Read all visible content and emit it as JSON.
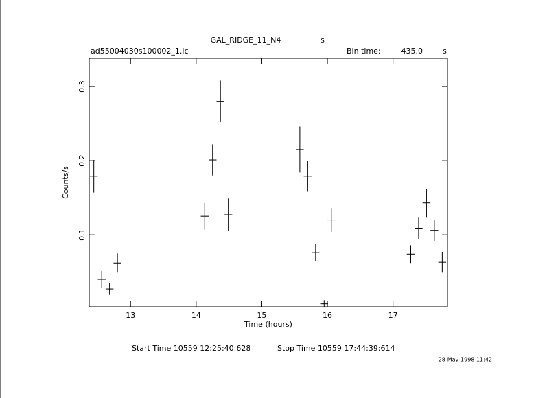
{
  "chart_data": {
    "type": "errorbar",
    "title": "GAL_RIDGE_11_N4",
    "title_unit": "s",
    "file_label": "ad55004030s100002_1.lc",
    "bin_time_label": "Bin time:",
    "bin_time": "435.0",
    "bin_time_unit": "s",
    "xlabel": "Time (hours)",
    "ylabel": "Counts/s",
    "start_time": "Start Time 10559  12:25:40:628",
    "stop_time": "Stop Time 10559  17:44:39:614",
    "timestamp": "28-May-1998 11:42",
    "xlim": [
      12.37,
      17.83
    ],
    "ylim": [
      0.003,
      0.338
    ],
    "xticks": [
      13,
      14,
      15,
      16,
      17
    ],
    "yticks": [
      0.1,
      0.2,
      0.3
    ],
    "color": "#000000",
    "series": [
      {
        "x": [
          12.44,
          12.56,
          12.68,
          12.8,
          14.13,
          14.25,
          14.37,
          14.49,
          15.58,
          15.7,
          15.82,
          15.95,
          16.06,
          17.27,
          17.39,
          17.51,
          17.63,
          17.75
        ],
        "values": [
          0.179,
          0.04,
          0.027,
          0.062,
          0.125,
          0.201,
          0.28,
          0.127,
          0.215,
          0.179,
          0.076,
          0.007,
          0.12,
          0.074,
          0.109,
          0.143,
          0.106,
          0.063
        ],
        "yerr": [
          0.022,
          0.011,
          0.008,
          0.013,
          0.018,
          0.021,
          0.028,
          0.022,
          0.031,
          0.021,
          0.012,
          0.005,
          0.016,
          0.012,
          0.015,
          0.019,
          0.014,
          0.014
        ],
        "xerr": [
          0.06,
          0.06,
          0.06,
          0.06,
          0.06,
          0.06,
          0.06,
          0.06,
          0.06,
          0.06,
          0.06,
          0.06,
          0.06,
          0.06,
          0.06,
          0.06,
          0.06,
          0.06
        ]
      }
    ]
  }
}
